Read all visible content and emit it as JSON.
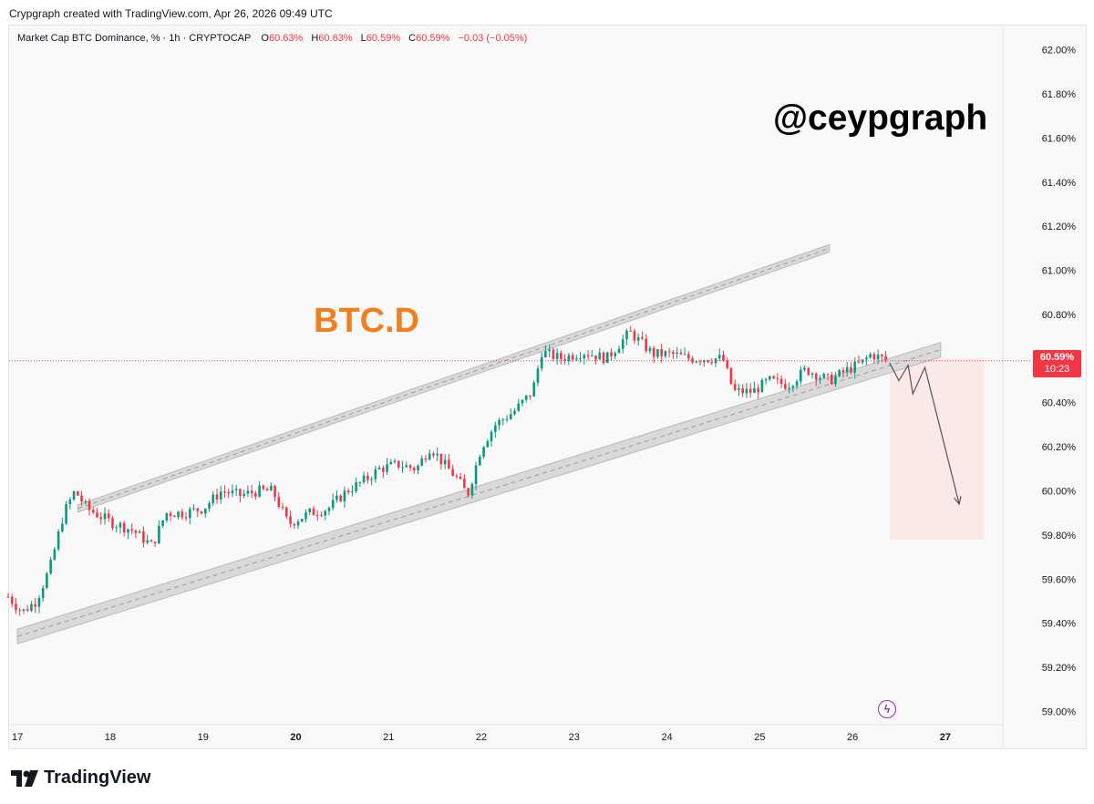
{
  "header": {
    "attribution": "Crypgraph created with TradingView.com, Apr 26, 2026 09:49 UTC"
  },
  "legend": {
    "symbol": "Market Cap BTC Dominance, % · 1h · CRYPTOCAP",
    "o_label": "O",
    "o_value": "60.63%",
    "h_label": "H",
    "h_value": "60.63%",
    "l_label": "L",
    "l_value": "60.59%",
    "c_label": "C",
    "c_value": "60.59%",
    "change": "−0.03 (−0.05%)"
  },
  "annotations": {
    "watermark": "@ceypgraph",
    "ticker_label": "BTC.D"
  },
  "price_tag": {
    "value": "60.59%",
    "countdown": "10:23"
  },
  "footer": {
    "brand": "TradingView"
  },
  "colors": {
    "up": "#089981",
    "down": "#f23645",
    "ticker": "#f0801f",
    "channel": "#cfcfcf",
    "zone": "#fbe9e9",
    "bolt": "#9c27b0"
  },
  "chart_data": {
    "type": "candlestick",
    "title": "Market Cap BTC Dominance, % · 1h · CRYPTOCAP",
    "x_ticks": [
      {
        "label": "17",
        "day": 17,
        "bold": false
      },
      {
        "label": "18",
        "day": 18,
        "bold": false
      },
      {
        "label": "19",
        "day": 19,
        "bold": false
      },
      {
        "label": "20",
        "day": 20,
        "bold": true
      },
      {
        "label": "21",
        "day": 21,
        "bold": false
      },
      {
        "label": "22",
        "day": 22,
        "bold": false
      },
      {
        "label": "23",
        "day": 23,
        "bold": false
      },
      {
        "label": "24",
        "day": 24,
        "bold": false
      },
      {
        "label": "25",
        "day": 25,
        "bold": false
      },
      {
        "label": "26",
        "day": 26,
        "bold": false
      },
      {
        "label": "27",
        "day": 27,
        "bold": true
      }
    ],
    "y_ticks": [
      "62.00%",
      "61.80%",
      "61.60%",
      "61.40%",
      "61.20%",
      "61.00%",
      "60.80%",
      "60.60%",
      "60.40%",
      "60.20%",
      "60.00%",
      "59.80%",
      "59.60%",
      "59.40%",
      "59.20%",
      "59.00%"
    ],
    "y_values": [
      62.0,
      61.8,
      61.6,
      61.4,
      61.2,
      61.0,
      60.8,
      60.6,
      60.4,
      60.2,
      60.0,
      59.8,
      59.6,
      59.4,
      59.2,
      59.0
    ],
    "ylim": [
      58.94,
      62.11
    ],
    "xlim": [
      16.91,
      27.62
    ],
    "last_price": 60.59,
    "anchors": [
      [
        16.9,
        59.52
      ],
      [
        17.05,
        59.45
      ],
      [
        17.2,
        59.5
      ],
      [
        17.35,
        59.65
      ],
      [
        17.5,
        59.9
      ],
      [
        17.62,
        60.0
      ],
      [
        17.75,
        59.92
      ],
      [
        18.0,
        59.86
      ],
      [
        18.25,
        59.82
      ],
      [
        18.45,
        59.75
      ],
      [
        18.6,
        59.9
      ],
      [
        18.8,
        59.9
      ],
      [
        19.0,
        59.92
      ],
      [
        19.2,
        60.0
      ],
      [
        19.4,
        59.98
      ],
      [
        19.6,
        60.0
      ],
      [
        19.75,
        60.0
      ],
      [
        19.92,
        59.85
      ],
      [
        20.15,
        59.9
      ],
      [
        20.35,
        59.92
      ],
      [
        20.55,
        60.0
      ],
      [
        20.75,
        60.05
      ],
      [
        20.9,
        60.1
      ],
      [
        21.1,
        60.12
      ],
      [
        21.3,
        60.1
      ],
      [
        21.45,
        60.2
      ],
      [
        21.6,
        60.12
      ],
      [
        21.75,
        60.05
      ],
      [
        21.85,
        59.98
      ],
      [
        22.0,
        60.2
      ],
      [
        22.15,
        60.3
      ],
      [
        22.35,
        60.36
      ],
      [
        22.55,
        60.45
      ],
      [
        22.65,
        60.63
      ],
      [
        22.85,
        60.6
      ],
      [
        23.1,
        60.63
      ],
      [
        23.35,
        60.6
      ],
      [
        23.6,
        60.72
      ],
      [
        23.85,
        60.62
      ],
      [
        24.05,
        60.62
      ],
      [
        24.25,
        60.6
      ],
      [
        24.45,
        60.6
      ],
      [
        24.6,
        60.6
      ],
      [
        24.72,
        60.45
      ],
      [
        24.92,
        60.45
      ],
      [
        25.1,
        60.5
      ],
      [
        25.3,
        60.48
      ],
      [
        25.5,
        60.55
      ],
      [
        25.75,
        60.5
      ],
      [
        25.95,
        60.55
      ],
      [
        26.1,
        60.58
      ],
      [
        26.2,
        60.62
      ],
      [
        26.38,
        60.59
      ]
    ],
    "channel_upper": [
      [
        17.65,
        59.92
      ],
      [
        25.75,
        61.1
      ]
    ],
    "channel_lower": [
      [
        17.0,
        59.34
      ],
      [
        25.95,
        60.55
      ]
    ],
    "support_zone": [
      [
        17.0,
        59.34
      ],
      [
        26.95,
        60.64
      ]
    ],
    "projection": [
      [
        26.4,
        60.58
      ],
      [
        26.5,
        60.5
      ],
      [
        26.6,
        60.57
      ],
      [
        26.65,
        60.44
      ],
      [
        26.78,
        60.56
      ],
      [
        27.15,
        59.94
      ]
    ],
    "target_box": {
      "x0": 26.4,
      "x1": 27.42,
      "y0": 59.78,
      "y1": 60.6
    }
  }
}
